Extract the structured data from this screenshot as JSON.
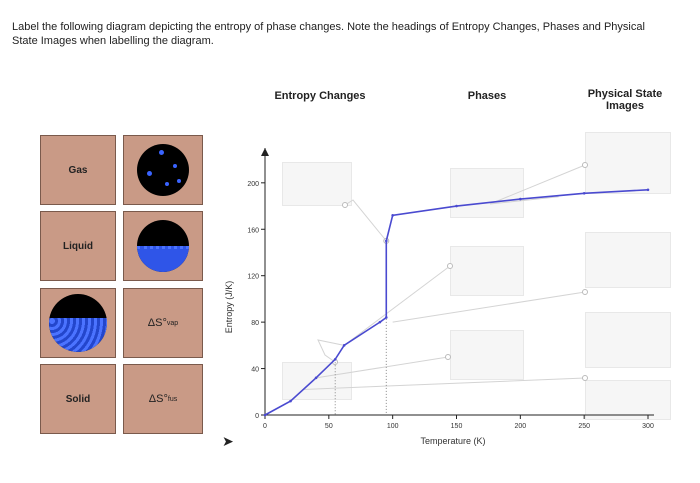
{
  "instructions": "Label the following diagram depicting the entropy of phase changes. Note the headings of Entropy Changes, Phases and Physical State Images when labelling the diagram.",
  "headers": {
    "entropy_changes": "Entropy Changes",
    "phases": "Phases",
    "physical_state_images": "Physical State Images"
  },
  "tiles": {
    "gas": "Gas",
    "liquid": "Liquid",
    "solid": "Solid",
    "vap_main": "ΔS°",
    "vap_sub": "vap",
    "fus_main": "ΔS°",
    "fus_sub": "fus"
  },
  "icons": {
    "gas_image": "gas-particles-icon",
    "liquid_image": "liquid-particles-icon",
    "solid_image": "solid-particles-icon",
    "cursor": "mouse-pointer-icon"
  },
  "colors": {
    "tile": "#c99a86",
    "curve": "#4a4ad0",
    "particles": "#3a64ff",
    "leader": "#d4d4d4"
  },
  "chart_data": {
    "type": "line",
    "xlabel": "Temperature (K)",
    "ylabel": "Entropy (J/K)",
    "x_ticks": [
      0,
      50,
      100,
      150,
      200,
      250,
      300
    ],
    "y_ticks": [
      0,
      40,
      80,
      120,
      160,
      200
    ],
    "xlim": [
      0,
      300
    ],
    "ylim": [
      0,
      230
    ],
    "series": [
      {
        "values": [
          [
            0,
            0
          ],
          [
            20,
            12
          ],
          [
            40,
            32
          ],
          [
            55,
            48
          ],
          [
            62,
            60
          ],
          [
            90,
            80
          ],
          [
            95,
            84
          ],
          [
            95,
            150
          ],
          [
            100,
            172
          ],
          [
            150,
            180
          ],
          [
            200,
            186
          ],
          [
            250,
            191
          ],
          [
            300,
            194
          ]
        ]
      }
    ]
  }
}
